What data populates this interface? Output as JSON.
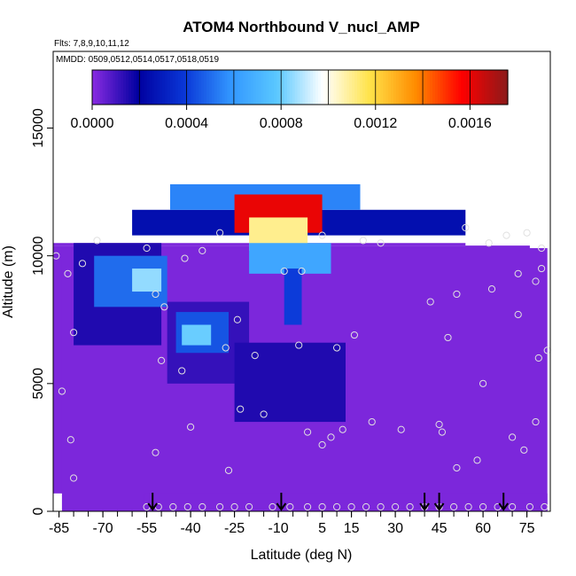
{
  "chart_data": {
    "type": "heatmap",
    "title": "ATOM4 Northbound V_nucl_AMP",
    "flights_note": "Flts: 7,8,9,10,11,12",
    "dates_note": "MMDD: 0509,0512,0514,0517,0518,0519",
    "xlabel": "Latitude (deg N)",
    "ylabel": "Altitude (m)",
    "xlim": [
      -87,
      83
    ],
    "ylim": [
      0,
      18000
    ],
    "x_ticks_labeled": [
      -85,
      -70,
      -55,
      -40,
      -25,
      -10,
      5,
      15,
      30,
      45,
      60,
      75
    ],
    "x_tick_labels": [
      "-85",
      "-70",
      "-55",
      "-40",
      "-25",
      "-10",
      "5",
      "15",
      "30",
      "45",
      "60",
      "75"
    ],
    "x_minor_step": 5,
    "y_ticks": [
      0,
      5000,
      10000,
      15000
    ],
    "y_tick_labels": [
      "0",
      "5000",
      "10000",
      "15000"
    ],
    "colorbar": {
      "min": 0,
      "max": 0.00176,
      "ticks": [
        0,
        0.0004,
        0.0008,
        0.0012,
        0.0016
      ],
      "tick_labels": [
        "0.0000",
        "0.0004",
        "0.0008",
        "0.0012",
        "0.0016"
      ],
      "divisions": [
        0,
        0.0002,
        0.0004,
        0.0006,
        0.0008,
        0.001,
        0.0012,
        0.0014,
        0.0016,
        0.00176
      ],
      "colors": [
        "#8a2be2",
        "#0000a0",
        "#0a37d7",
        "#3296ff",
        "#5ac8ff",
        "#ffffff",
        "#ffe34a",
        "#ff8c00",
        "#ff0000",
        "#8b1a1a"
      ]
    },
    "background_value": 2e-05,
    "field_regions": [
      {
        "lat": [
          -87,
          54
        ],
        "alt": [
          10400,
          10500
        ],
        "value": 2e-05
      },
      {
        "lat": [
          -87,
          76
        ],
        "alt": [
          700,
          10400
        ],
        "value": 2e-05
      },
      {
        "lat": [
          -84,
          82
        ],
        "alt": [
          0,
          10300
        ],
        "value": 2e-05
      },
      {
        "lat": [
          -56,
          82
        ],
        "alt": [
          0,
          700
        ],
        "value": 2e-05
      }
    ],
    "features": [
      {
        "name": "upper-layer-band",
        "lat": [
          -60,
          54
        ],
        "alt": [
          10800,
          11800
        ],
        "value": 0.00025
      },
      {
        "name": "upper-layer-cap",
        "lat": [
          -47,
          18
        ],
        "alt": [
          11800,
          12800
        ],
        "value": 0.00055
      },
      {
        "name": "upper-core-peak",
        "lat": [
          -25,
          5
        ],
        "alt": [
          10900,
          12400
        ],
        "value": 0.0016
      },
      {
        "name": "upper-core-center",
        "lat": [
          -20,
          0
        ],
        "alt": [
          10200,
          11500
        ],
        "value": 0.0011
      },
      {
        "name": "upper-funnel",
        "lat": [
          -20,
          8
        ],
        "alt": [
          9300,
          10500
        ],
        "value": 0.00065
      },
      {
        "name": "lower-funnel",
        "lat": [
          -8,
          -2
        ],
        "alt": [
          7300,
          9500
        ],
        "value": 0.0004
      },
      {
        "name": "southern-blob-outer",
        "lat": [
          -80,
          -50
        ],
        "alt": [
          6500,
          10500
        ],
        "value": 0.00015
      },
      {
        "name": "southern-blob-core",
        "lat": [
          -73,
          -48
        ],
        "alt": [
          8000,
          10000
        ],
        "value": 0.0005
      },
      {
        "name": "southern-blob-peak",
        "lat": [
          -60,
          -50
        ],
        "alt": [
          8600,
          9500
        ],
        "value": 0.00085
      },
      {
        "name": "mid-blob-outer",
        "lat": [
          -48,
          -20
        ],
        "alt": [
          5000,
          8200
        ],
        "value": 0.00012
      },
      {
        "name": "mid-blob-core",
        "lat": [
          -45,
          -27
        ],
        "alt": [
          6200,
          7800
        ],
        "value": 0.00045
      },
      {
        "name": "mid-blob-peak",
        "lat": [
          -43,
          -33
        ],
        "alt": [
          6500,
          7300
        ],
        "value": 0.0008
      },
      {
        "name": "central-lobe",
        "lat": [
          -25,
          13
        ],
        "alt": [
          3500,
          6600
        ],
        "value": 0.00015
      }
    ],
    "sample_points": [
      [
        -86,
        10000
      ],
      [
        -82,
        9300
      ],
      [
        -77,
        9700
      ],
      [
        -72,
        10600
      ],
      [
        -80,
        7000
      ],
      [
        -84,
        4700
      ],
      [
        -81,
        2800
      ],
      [
        -80,
        1300
      ],
      [
        -55,
        10300
      ],
      [
        -52,
        8500
      ],
      [
        -49,
        8000
      ],
      [
        -42,
        9900
      ],
      [
        -36,
        10200
      ],
      [
        -30,
        10900
      ],
      [
        -28,
        6400
      ],
      [
        -24,
        7500
      ],
      [
        -43,
        5500
      ],
      [
        -50,
        5900
      ],
      [
        -40,
        3300
      ],
      [
        -52,
        2300
      ],
      [
        -27,
        1600
      ],
      [
        -23,
        4000
      ],
      [
        -15,
        3800
      ],
      [
        -18,
        6100
      ],
      [
        -8,
        9400
      ],
      [
        -2,
        9400
      ],
      [
        -3,
        6500
      ],
      [
        5,
        10800
      ],
      [
        10,
        6400
      ],
      [
        16,
        6900
      ],
      [
        12,
        3200
      ],
      [
        8,
        2900
      ],
      [
        5,
        2600
      ],
      [
        0,
        3100
      ],
      [
        19,
        10600
      ],
      [
        25,
        10500
      ],
      [
        22,
        3500
      ],
      [
        32,
        3200
      ],
      [
        45,
        3400
      ],
      [
        46,
        3100
      ],
      [
        42,
        8200
      ],
      [
        48,
        6800
      ],
      [
        51,
        8500
      ],
      [
        51,
        1700
      ],
      [
        54,
        11100
      ],
      [
        58,
        2000
      ],
      [
        60,
        5000
      ],
      [
        62,
        10500
      ],
      [
        63,
        8700
      ],
      [
        68,
        10800
      ],
      [
        72,
        9300
      ],
      [
        72,
        7700
      ],
      [
        75,
        10900
      ],
      [
        78,
        9000
      ],
      [
        79,
        6000
      ],
      [
        78,
        3500
      ],
      [
        70,
        2900
      ],
      [
        74,
        2400
      ],
      [
        80,
        9500
      ],
      [
        82,
        6300
      ],
      [
        80,
        10300
      ],
      [
        -88,
        9800
      ]
    ],
    "bottom_points": [
      -55,
      -51,
      -46,
      -41,
      -36,
      -30,
      -25,
      -20,
      -12,
      -6,
      0,
      5,
      10,
      15,
      20,
      25,
      30,
      35,
      40,
      45,
      50,
      55,
      60,
      65,
      70,
      76,
      81
    ],
    "arrows_lat": [
      -53,
      -9,
      40,
      45,
      67
    ]
  }
}
